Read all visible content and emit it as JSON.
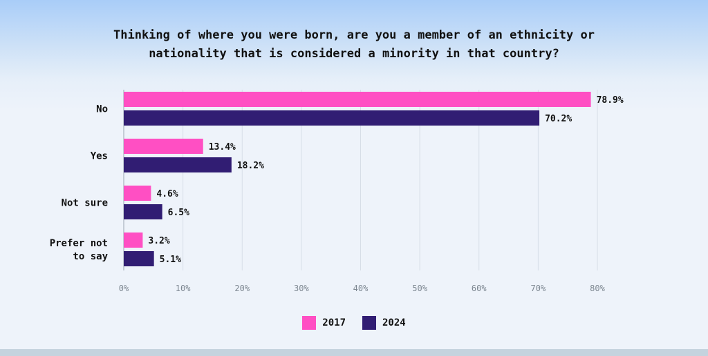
{
  "chart_data": {
    "type": "bar",
    "orientation": "horizontal",
    "title": "Thinking of where you were born, are you a member of an ethnicity or\nnationality that is considered a minority in that country?",
    "categories": [
      "No",
      "Yes",
      "Not sure",
      "Prefer not\nto say"
    ],
    "series": [
      {
        "name": "2017",
        "color": "#ff4fc3",
        "values": [
          78.9,
          13.4,
          4.6,
          3.2
        ],
        "labels": [
          "78.9%",
          "13.4%",
          "4.6%",
          "3.2%"
        ]
      },
      {
        "name": "2024",
        "color": "#311d73",
        "values": [
          70.2,
          18.2,
          6.5,
          5.1
        ],
        "labels": [
          "70.2%",
          "18.2%",
          "6.5%",
          "5.1%"
        ]
      }
    ],
    "xlim": [
      0,
      80
    ],
    "xticks": [
      0,
      10,
      20,
      30,
      40,
      50,
      60,
      70,
      80
    ],
    "xtick_labels": [
      "0%",
      "10%",
      "20%",
      "30%",
      "40%",
      "50%",
      "60%",
      "70%",
      "80%"
    ],
    "grid": true,
    "legend_position": "bottom-center",
    "xlabel": "",
    "ylabel": ""
  }
}
